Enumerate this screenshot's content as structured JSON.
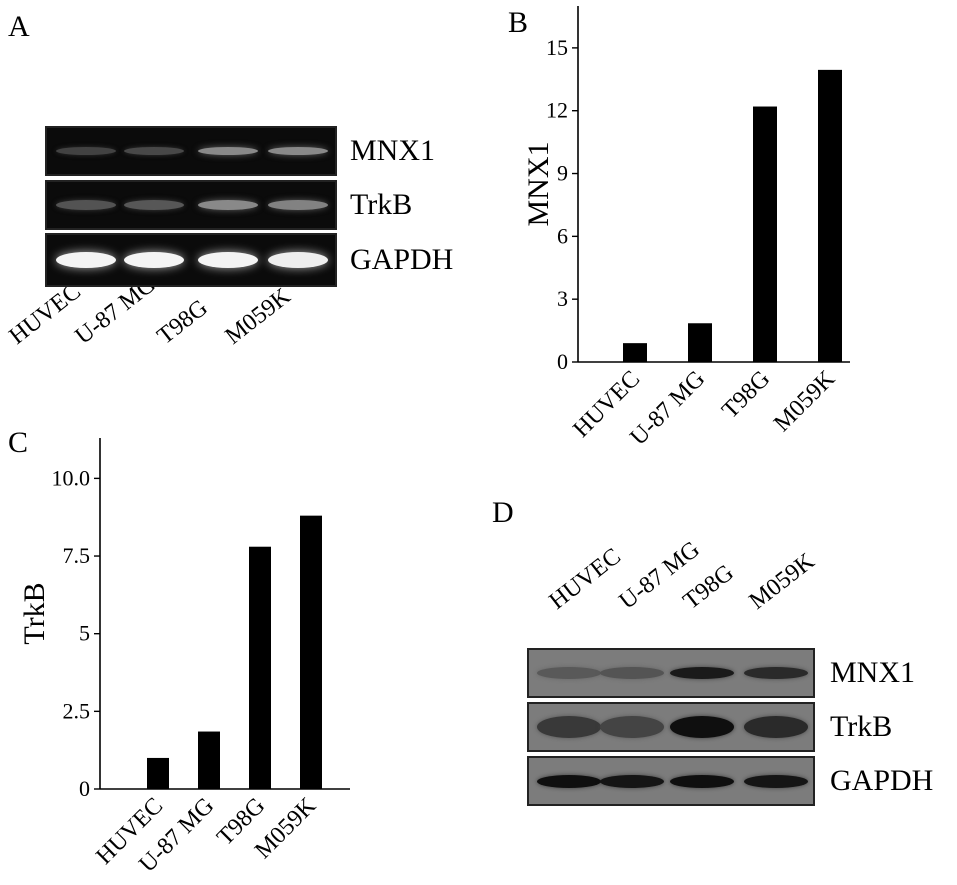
{
  "panels": {
    "a": {
      "letter": "A"
    },
    "b": {
      "letter": "B"
    },
    "c": {
      "letter": "C"
    },
    "d": {
      "letter": "D"
    }
  },
  "gel_a": {
    "lanes": [
      "HUVEC",
      "U-87 MG",
      "T98G",
      "M059K"
    ],
    "rows": [
      {
        "label": "MNX1",
        "intensity": [
          0.12,
          0.15,
          0.45,
          0.45
        ]
      },
      {
        "label": "TrkB",
        "intensity": [
          0.2,
          0.22,
          0.45,
          0.42
        ]
      },
      {
        "label": "GAPDH",
        "intensity": [
          0.95,
          0.95,
          0.95,
          0.92
        ]
      }
    ]
  },
  "blot_d": {
    "lanes": [
      "HUVEC",
      "U-87 MG",
      "T98G",
      "M059K"
    ],
    "rows": [
      {
        "label": "MNX1",
        "intensity": [
          0.25,
          0.3,
          0.85,
          0.7
        ]
      },
      {
        "label": "TrkB",
        "intensity": [
          0.55,
          0.45,
          0.95,
          0.7
        ]
      },
      {
        "label": "GAPDH",
        "intensity": [
          0.95,
          0.9,
          0.95,
          0.9
        ]
      }
    ]
  },
  "chart_data": [
    {
      "panel": "B",
      "type": "bar",
      "categories": [
        "HUVEC",
        "U-87 MG",
        "T98G",
        "M059K"
      ],
      "values": [
        0.9,
        1.85,
        12.2,
        13.95
      ],
      "title": "",
      "xlabel": "",
      "ylabel": "MNX1",
      "ylim": [
        0,
        17
      ],
      "yticks": [
        0,
        3,
        6,
        9,
        12,
        15
      ],
      "ytick_labels": [
        "0",
        "3",
        "6",
        "9",
        "12",
        "15"
      ],
      "grid": false,
      "bar_color": "#000000"
    },
    {
      "panel": "C",
      "type": "bar",
      "categories": [
        "HUVEC",
        "U-87 MG",
        "T98G",
        "M059K"
      ],
      "values": [
        1.0,
        1.85,
        7.8,
        8.8
      ],
      "title": "",
      "xlabel": "",
      "ylabel": "TrkB",
      "ylim": [
        0,
        11.3
      ],
      "yticks": [
        0,
        2.5,
        5,
        7.5,
        10
      ],
      "ytick_labels": [
        "0",
        "2.5",
        "5",
        "7.5",
        "10.0"
      ],
      "grid": false,
      "bar_color": "#000000"
    }
  ]
}
